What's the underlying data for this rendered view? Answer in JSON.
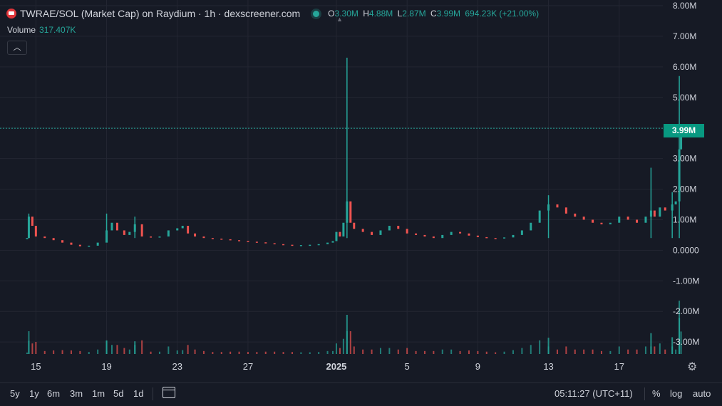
{
  "legend": {
    "title": "TWRAE/SOL (Market Cap) on Raydium · 1h · dexscreener.com",
    "o_label": "O",
    "o_value": "3.30M",
    "h_label": "H",
    "h_value": "4.88M",
    "l_label": "L",
    "l_value": "2.87M",
    "c_label": "C",
    "c_value": "3.99M",
    "change": "694.23K (+21.00%)",
    "volume_label": "Volume",
    "volume_value": "317.407K"
  },
  "price_tag": "3.99M",
  "toolbar": {
    "timeframes": [
      "5y",
      "1y",
      "6m",
      "3m",
      "1m",
      "5d",
      "1d"
    ],
    "time": "05:11:27 (UTC+11)",
    "percent": "%",
    "log": "log",
    "auto": "auto"
  },
  "colors": {
    "up": "#26a69a",
    "down": "#ef5350",
    "background": "#161a25",
    "grid": "#232632",
    "price_tag": "#089981"
  },
  "icons": {
    "settings": "gear-icon",
    "calendar": "calendar-icon",
    "collapse": "chevron-up-icon"
  },
  "chart_data": {
    "type": "candlestick",
    "ylim": [
      -3300000,
      8000000
    ],
    "y_ticks": [
      "8.00M",
      "7.00M",
      "6.00M",
      "5.00M",
      "4.00M",
      "3.00M",
      "2.00M",
      "1.00M",
      "0.0000",
      "-1.00M",
      "-2.00M",
      "-3.00M"
    ],
    "y_tick_values": [
      8000000,
      7000000,
      6000000,
      5000000,
      4000000,
      3000000,
      2000000,
      1000000,
      0,
      -1000000,
      -2000000,
      -3000000
    ],
    "x_ticks": [
      "15",
      "19",
      "23",
      "27",
      "2025",
      "5",
      "9",
      "13",
      "17"
    ],
    "x_tick_days": [
      15,
      19,
      23,
      27,
      32,
      36,
      40,
      44,
      48
    ],
    "x_range_days": [
      14.3,
      51.8
    ],
    "x_note": "day index counted from Dec 1 2024; 2025 = Jan 1",
    "current_price": 3990000,
    "volume_max": 1400000,
    "points": [
      [
        14.5,
        400000
      ],
      [
        14.6,
        1100000
      ],
      [
        14.8,
        800000
      ],
      [
        15.0,
        450000
      ],
      [
        15.5,
        400000
      ],
      [
        16.0,
        330000
      ],
      [
        16.5,
        250000
      ],
      [
        17.0,
        180000
      ],
      [
        17.5,
        130000
      ],
      [
        18.0,
        150000
      ],
      [
        18.5,
        250000
      ],
      [
        19.0,
        650000
      ],
      [
        19.3,
        900000
      ],
      [
        19.6,
        650000
      ],
      [
        20.0,
        500000
      ],
      [
        20.3,
        600000
      ],
      [
        20.6,
        850000
      ],
      [
        21.0,
        450000
      ],
      [
        21.5,
        420000
      ],
      [
        22.0,
        450000
      ],
      [
        22.5,
        650000
      ],
      [
        23.0,
        720000
      ],
      [
        23.3,
        800000
      ],
      [
        23.6,
        550000
      ],
      [
        24.0,
        450000
      ],
      [
        24.5,
        400000
      ],
      [
        25.0,
        380000
      ],
      [
        25.5,
        360000
      ],
      [
        26.0,
        330000
      ],
      [
        26.5,
        300000
      ],
      [
        27.0,
        280000
      ],
      [
        27.5,
        260000
      ],
      [
        28.0,
        230000
      ],
      [
        28.5,
        200000
      ],
      [
        29.0,
        180000
      ],
      [
        29.5,
        160000
      ],
      [
        30.0,
        170000
      ],
      [
        30.5,
        180000
      ],
      [
        31.0,
        200000
      ],
      [
        31.5,
        250000
      ],
      [
        31.8,
        300000
      ],
      [
        32.0,
        600000
      ],
      [
        32.2,
        450000
      ],
      [
        32.4,
        900000
      ],
      [
        32.6,
        1600000
      ],
      [
        32.8,
        900000
      ],
      [
        33.0,
        700000
      ],
      [
        33.5,
        600000
      ],
      [
        34.0,
        500000
      ],
      [
        34.5,
        650000
      ],
      [
        35.0,
        800000
      ],
      [
        35.5,
        700000
      ],
      [
        36.0,
        550000
      ],
      [
        36.5,
        500000
      ],
      [
        37.0,
        450000
      ],
      [
        37.5,
        400000
      ],
      [
        38.0,
        500000
      ],
      [
        38.5,
        600000
      ],
      [
        39.0,
        550000
      ],
      [
        39.5,
        480000
      ],
      [
        40.0,
        430000
      ],
      [
        40.5,
        400000
      ],
      [
        41.0,
        390000
      ],
      [
        41.5,
        420000
      ],
      [
        42.0,
        500000
      ],
      [
        42.5,
        650000
      ],
      [
        43.0,
        900000
      ],
      [
        43.5,
        1300000
      ],
      [
        44.0,
        1500000
      ],
      [
        44.5,
        1400000
      ],
      [
        45.0,
        1200000
      ],
      [
        45.5,
        1100000
      ],
      [
        46.0,
        1000000
      ],
      [
        46.5,
        900000
      ],
      [
        47.0,
        850000
      ],
      [
        47.5,
        900000
      ],
      [
        48.0,
        1100000
      ],
      [
        48.5,
        1000000
      ],
      [
        49.0,
        900000
      ],
      [
        49.5,
        1100000
      ],
      [
        49.8,
        1300000
      ],
      [
        50.0,
        1100000
      ],
      [
        50.3,
        1400000
      ],
      [
        50.6,
        1300000
      ],
      [
        51.0,
        1500000
      ],
      [
        51.2,
        1600000
      ],
      [
        51.4,
        3300000
      ],
      [
        51.5,
        3990000
      ]
    ],
    "wicks": [
      [
        14.6,
        1200000
      ],
      [
        19.0,
        1200000
      ],
      [
        20.6,
        1100000
      ],
      [
        32.6,
        6300000
      ],
      [
        44.0,
        1800000
      ],
      [
        49.8,
        2700000
      ],
      [
        51.0,
        1900000
      ],
      [
        51.4,
        5700000
      ]
    ]
  }
}
